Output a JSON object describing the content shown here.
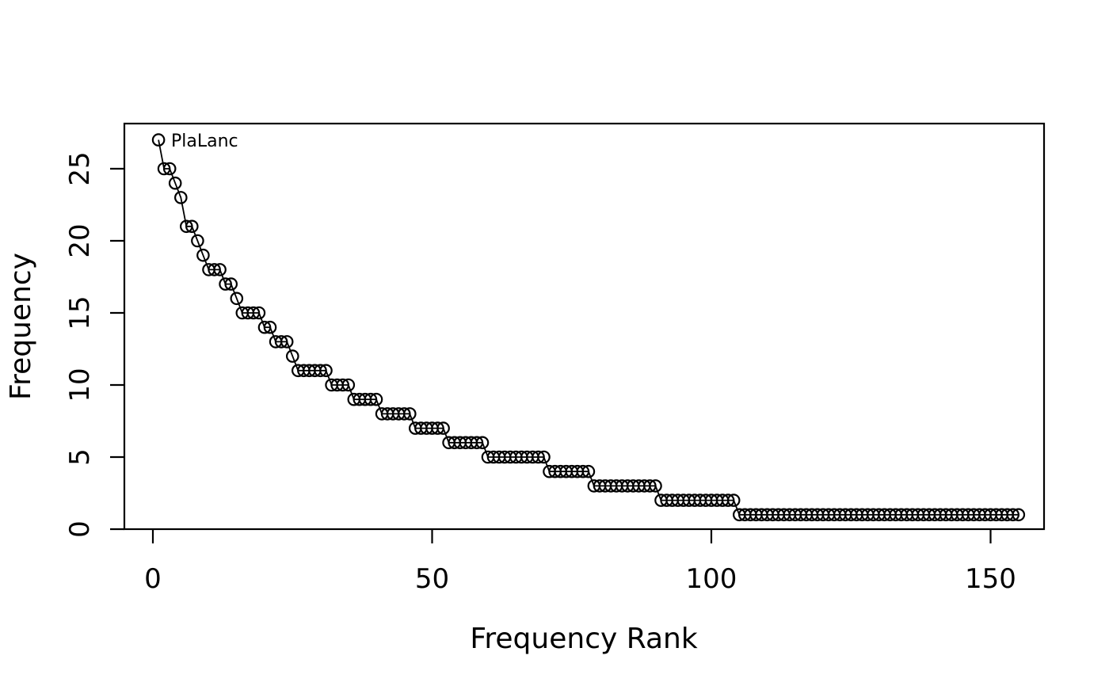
{
  "colors": {
    "foreground": "#000000",
    "background": "#ffffff"
  },
  "chart_data": {
    "type": "line",
    "title": "",
    "xlabel": "Frequency Rank",
    "ylabel": "Frequency",
    "point_label": "PlaLanc",
    "point_label_rank": 1,
    "x_ticks": [
      0,
      50,
      100,
      150
    ],
    "y_ticks": [
      0,
      5,
      10,
      15,
      20,
      25
    ],
    "xlim": [
      -5.2,
      161.2
    ],
    "ylim": [
      0,
      28.1
    ],
    "grid": "off",
    "legend": "none",
    "marker": "open-circle",
    "rank_start": 1,
    "values": [
      27,
      25,
      25,
      24,
      23,
      21,
      21,
      20,
      19,
      18,
      18,
      18,
      17,
      17,
      16,
      15,
      15,
      15,
      15,
      14,
      14,
      13,
      13,
      13,
      12,
      11,
      11,
      11,
      11,
      11,
      11,
      10,
      10,
      10,
      10,
      9,
      9,
      9,
      9,
      9,
      8,
      8,
      8,
      8,
      8,
      8,
      7,
      7,
      7,
      7,
      7,
      7,
      6,
      6,
      6,
      6,
      6,
      6,
      6,
      5,
      5,
      5,
      5,
      5,
      5,
      5,
      5,
      5,
      5,
      5,
      4,
      4,
      4,
      4,
      4,
      4,
      4,
      4,
      3,
      3,
      3,
      3,
      3,
      3,
      3,
      3,
      3,
      3,
      3,
      3,
      2,
      2,
      2,
      2,
      2,
      2,
      2,
      2,
      2,
      2,
      2,
      2,
      2,
      2,
      1,
      1,
      1,
      1,
      1,
      1,
      1,
      1,
      1,
      1,
      1,
      1,
      1,
      1,
      1,
      1,
      1,
      1,
      1,
      1,
      1,
      1,
      1,
      1,
      1,
      1,
      1,
      1,
      1,
      1,
      1,
      1,
      1,
      1,
      1,
      1,
      1,
      1,
      1,
      1,
      1,
      1,
      1,
      1,
      1,
      1,
      1,
      1,
      1,
      1,
      1
    ]
  }
}
